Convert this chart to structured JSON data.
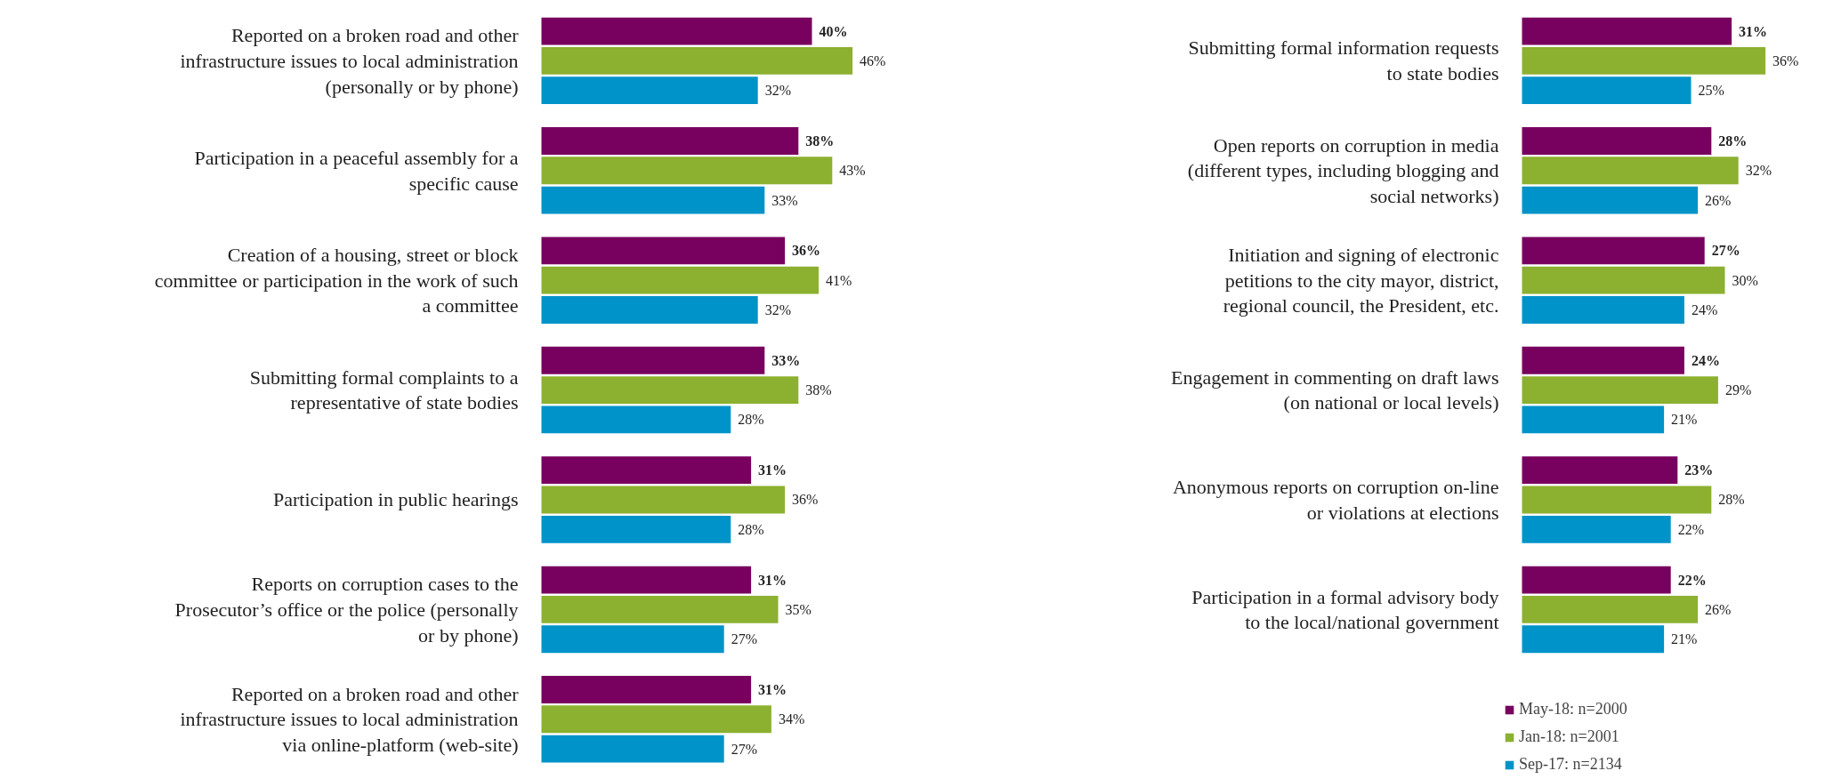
{
  "chart_data": [
    {
      "type": "bar",
      "orientation": "horizontal",
      "categories": [
        "Reported on a broken road and other infrastructure issues to local administration (personally or by phone)",
        "Participation in a peaceful assembly for a specific cause",
        "Creation of a housing, street or block committee or participation in the work of such a committee",
        "Submitting formal complaints to a representative of state bodies",
        "Participation in public hearings",
        "Reports on corruption cases to the Prosecutor’s office or the police (personally or by phone)",
        "Reported on a broken road and other infrastructure issues to local administration via online-platform (web-site)"
      ],
      "legend": false,
      "grid": false,
      "series": [
        {
          "color": "#78005e",
          "values": [
            40,
            38,
            36,
            33,
            31,
            31,
            31
          ],
          "value_labels": [
            "40%",
            "38%",
            "36%",
            "33%",
            "31%",
            "31%",
            "31%"
          ]
        },
        {
          "color": "#8cb030",
          "values": [
            46,
            43,
            41,
            38,
            36,
            35,
            34
          ],
          "value_labels": [
            "46%",
            "43%",
            "41%",
            "38%",
            "36%",
            "35%",
            "34%"
          ]
        },
        {
          "color": "#0093c9",
          "values": [
            32,
            33,
            32,
            28,
            28,
            27,
            27
          ],
          "value_labels": [
            "32%",
            "33%",
            "32%",
            "28%",
            "28%",
            "27%",
            "27%"
          ]
        }
      ]
    },
    {
      "type": "bar",
      "orientation": "horizontal",
      "categories": [
        "Submitting formal information requests to state bodies",
        "Open reports on corruption in media (different types, including blogging and social networks)",
        "Initiation and signing of electronic petitions to the city mayor, district, regional council, the President, etc.",
        "Engagement in commenting on draft laws (on national or local levels)",
        "Anonymous reports on corruption on-line or violations at elections",
        "Participation in a formal advisory body to the local/national government"
      ],
      "legend": "bottom",
      "grid": false,
      "series": [
        {
          "name": "May-18: n=2000",
          "color": "#78005e",
          "values": [
            31,
            28,
            27,
            24,
            23,
            22
          ],
          "value_labels": [
            "31%",
            "28%",
            "27%",
            "24%",
            "23%",
            "22%"
          ]
        },
        {
          "name": "Jan-18: n=2001",
          "color": "#8cb030",
          "values": [
            36,
            32,
            30,
            29,
            28,
            26
          ],
          "value_labels": [
            "36%",
            "32%",
            "30%",
            "29%",
            "28%",
            "26%"
          ]
        },
        {
          "name": "Sep-17: n=2134",
          "color": "#0093c9",
          "values": [
            25,
            26,
            24,
            21,
            22,
            21
          ],
          "value_labels": [
            "25%",
            "26%",
            "24%",
            "21%",
            "22%",
            "21%"
          ]
        }
      ]
    }
  ]
}
